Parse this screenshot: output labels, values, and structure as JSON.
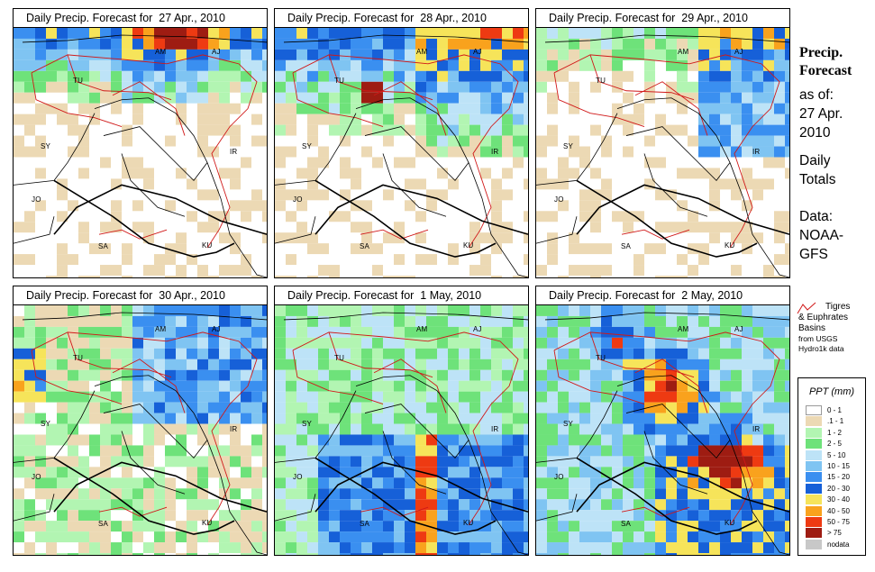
{
  "panels": [
    {
      "title": "Daily Precip. Forecast for  27 Apr., 2010",
      "intensity": "day1"
    },
    {
      "title": "Daily Precip. Forecast for  28 Apr., 2010",
      "intensity": "day2"
    },
    {
      "title": "Daily Precip. Forecast for  29 Apr., 2010",
      "intensity": "day3"
    },
    {
      "title": "Daily Precip. Forecast for  30 Apr., 2010",
      "intensity": "day4"
    },
    {
      "title": "Daily Precip. Forecast for  1 May, 2010",
      "intensity": "day5"
    },
    {
      "title": "Daily Precip. Forecast for  2 May, 2010",
      "intensity": "day6"
    }
  ],
  "countries": {
    "am": "AM",
    "aj": "AJ",
    "tu": "TU",
    "sy": "SY",
    "ir": "IR",
    "jo": "JO",
    "sa": "SA",
    "ku": "KU"
  },
  "side": {
    "title_line1": "Precip.",
    "title_line2": "Forecast",
    "asof": "as of:",
    "date1": "27 Apr.",
    "date2": "2010",
    "daily": "Daily",
    "totals": "Totals",
    "data": "Data:",
    "source1": "NOAA-",
    "source2": "GFS"
  },
  "basin_legend": {
    "line1": "Tigres",
    "line2": "& Euphrates",
    "line3": "Basins",
    "line4": "from USGS",
    "line5": "Hydro1k data"
  },
  "ppt_legend": {
    "header": "PPT (mm)",
    "items": [
      {
        "label": "0 - 1",
        "color": "#ffffff"
      },
      {
        "label": ".1 - 1",
        "color": "#ecd9b4"
      },
      {
        "label": "1 - 2",
        "color": "#b2f5b2"
      },
      {
        "label": "2 - 5",
        "color": "#6ee27a"
      },
      {
        "label": "5 - 10",
        "color": "#bde3f7"
      },
      {
        "label": "10 - 15",
        "color": "#7fc4f2"
      },
      {
        "label": "15 - 20",
        "color": "#3a8ff0"
      },
      {
        "label": "20 - 30",
        "color": "#1660d8"
      },
      {
        "label": "30 - 40",
        "color": "#f6e45a"
      },
      {
        "label": "40 - 50",
        "color": "#f9a21d"
      },
      {
        "label": "50 - 75",
        "color": "#ee3a12"
      },
      {
        "label": "> 75",
        "color": "#9e1c12"
      },
      {
        "label": "nodata",
        "color": "#c8c8c8"
      }
    ]
  },
  "colors": {
    "basin": "#d01818",
    "border": "#000000"
  }
}
